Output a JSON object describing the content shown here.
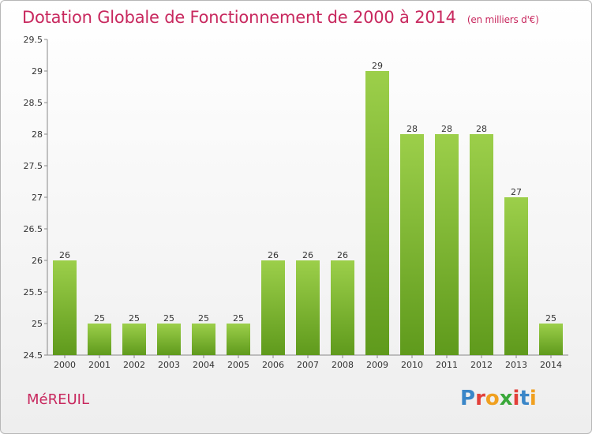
{
  "header": {
    "title": "Dotation Globale de Fonctionnement de 2000 à 2014",
    "subtitle": "(en milliers d'€)"
  },
  "footer": {
    "commune": "MéREUIL",
    "logo": "Proxiti",
    "logo_colors": [
      "#3a86c8",
      "#e2403a",
      "#f0a020",
      "#3aa83a",
      "#e2403a",
      "#3a86c8",
      "#f0a020"
    ]
  },
  "chart_data": {
    "type": "bar",
    "categories": [
      "2000",
      "2001",
      "2002",
      "2003",
      "2004",
      "2005",
      "2006",
      "2007",
      "2008",
      "2009",
      "2010",
      "2011",
      "2012",
      "2013",
      "2014"
    ],
    "values": [
      26,
      25,
      25,
      25,
      25,
      25,
      26,
      26,
      26,
      29,
      28,
      28,
      28,
      27,
      25
    ],
    "ylim": [
      24.5,
      29.5
    ],
    "yticks": [
      "24.5",
      "25",
      "25.5",
      "26",
      "26.5",
      "27",
      "27.5",
      "28",
      "28.5",
      "29",
      "29.5"
    ],
    "grid": false,
    "bar_color_top": "#9ccf4a",
    "bar_color_bottom": "#5f9a1c"
  }
}
